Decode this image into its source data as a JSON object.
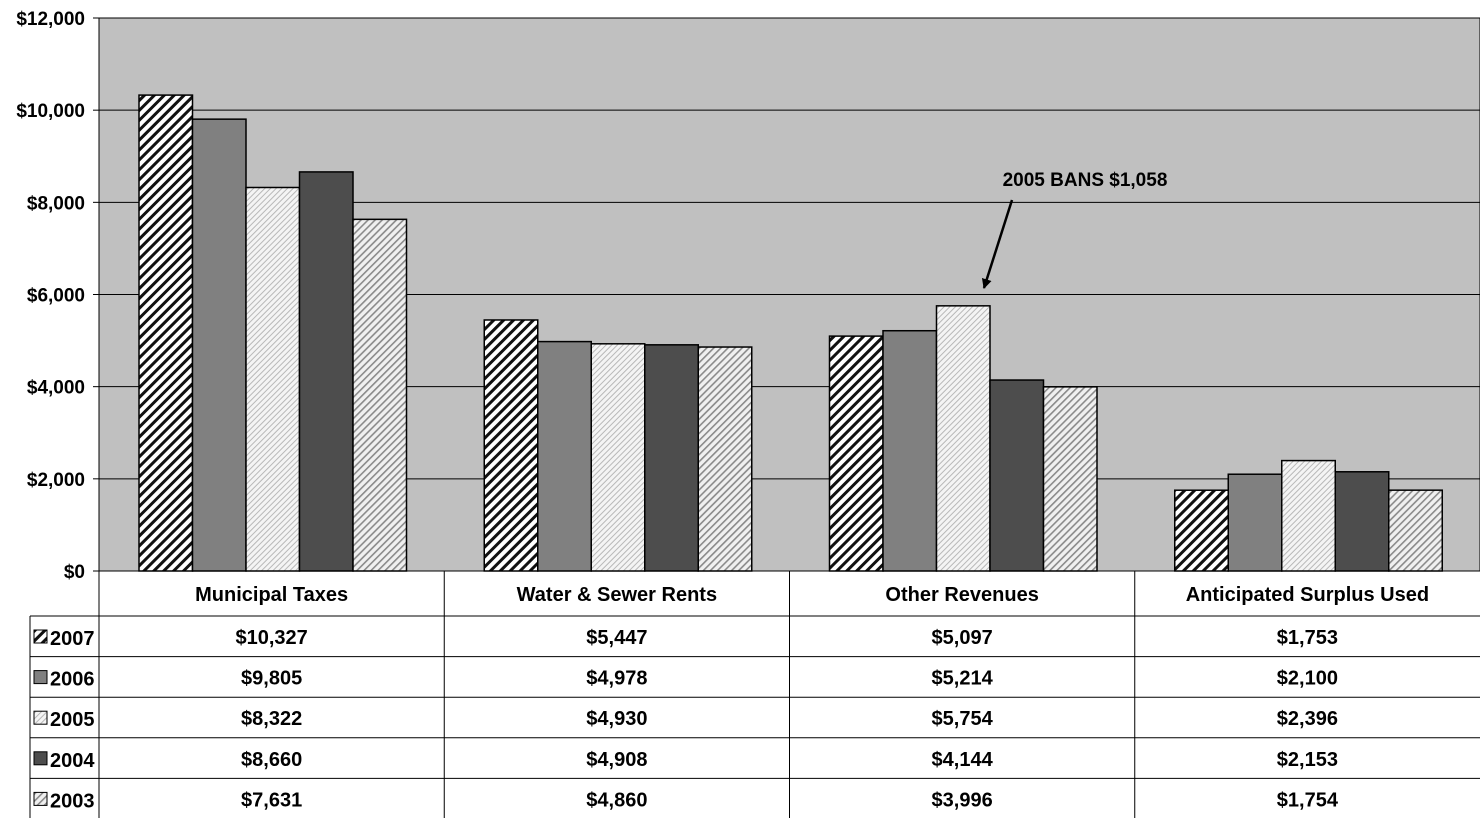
{
  "chart_data": {
    "type": "bar",
    "categories": [
      "Municipal Taxes",
      "Water & Sewer Rents",
      "Other Revenues",
      "Anticipated Surplus Used"
    ],
    "series": [
      {
        "name": "2007",
        "values": [
          10327,
          5447,
          5097,
          1753
        ],
        "labels": [
          "$10,327",
          "$5,447",
          "$5,097",
          "$1,753"
        ],
        "fill": "hatch-dense"
      },
      {
        "name": "2006",
        "values": [
          9805,
          4978,
          5214,
          2100
        ],
        "labels": [
          "$9,805",
          "$4,978",
          "$5,214",
          "$2,100"
        ],
        "fill": "#808080"
      },
      {
        "name": "2005",
        "values": [
          8322,
          4930,
          5754,
          2396
        ],
        "labels": [
          "$8,322",
          "$4,930",
          "$5,754",
          "$2,396"
        ],
        "fill": "hatch-light"
      },
      {
        "name": "2004",
        "values": [
          8660,
          4908,
          4144,
          2153
        ],
        "labels": [
          "$8,660",
          "$4,908",
          "$4,144",
          "$2,153"
        ],
        "fill": "#4d4d4d"
      },
      {
        "name": "2003",
        "values": [
          7631,
          4860,
          3996,
          1754
        ],
        "labels": [
          "$7,631",
          "$4,860",
          "$3,996",
          "$1,754"
        ],
        "fill": "hatch-medium"
      }
    ],
    "y_ticks": [
      "$0",
      "$2,000",
      "$4,000",
      "$6,000",
      "$8,000",
      "$10,000",
      "$12,000"
    ],
    "ylim": [
      0,
      12000
    ],
    "grid": true,
    "legend": "data-table",
    "plot_background": "#c0c0c0",
    "annotation": {
      "text": "2005 BANS $1,058",
      "category": "Other Revenues",
      "series": "2005"
    }
  }
}
